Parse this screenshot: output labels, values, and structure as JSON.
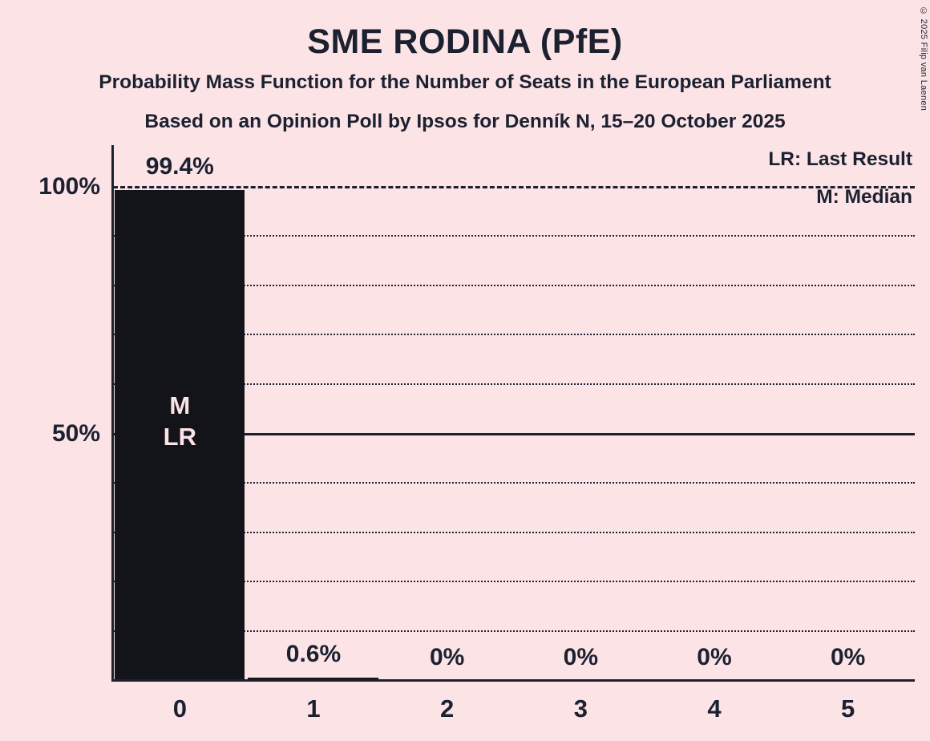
{
  "page": {
    "background_color": "#fce3e6",
    "text_color": "#1b2130"
  },
  "header": {
    "title": "SME RODINA (PfE)",
    "subtitle1": "Probability Mass Function for the Number of Seats in the European Parliament",
    "subtitle2": "Based on an Opinion Poll by Ipsos for Denník N, 15–20 October 2025"
  },
  "legend": {
    "lr": "LR: Last Result",
    "m": "M: Median"
  },
  "copyright": "© 2025 Filip van Laenen",
  "chart_data": {
    "type": "bar",
    "title": "SME RODINA (PfE)",
    "categories": [
      "0",
      "1",
      "2",
      "3",
      "4",
      "5"
    ],
    "values": [
      99.4,
      0.6,
      0,
      0,
      0,
      0
    ],
    "value_labels": [
      "99.4%",
      "0.6%",
      "0%",
      "0%",
      "0%",
      "0%"
    ],
    "bar_annotations": [
      {
        "index": 0,
        "lines": [
          "M",
          "LR"
        ]
      }
    ],
    "ylim": [
      0,
      100
    ],
    "yticks": [
      {
        "pct": 100,
        "label": "100%"
      },
      {
        "pct": 50,
        "label": "50%"
      }
    ],
    "gridlines": [
      {
        "pct": 100,
        "style": "dashed"
      },
      {
        "pct": 90,
        "style": "dotted"
      },
      {
        "pct": 80,
        "style": "dotted"
      },
      {
        "pct": 70,
        "style": "dotted"
      },
      {
        "pct": 60,
        "style": "dotted"
      },
      {
        "pct": 50,
        "style": "solid"
      },
      {
        "pct": 40,
        "style": "dotted"
      },
      {
        "pct": 30,
        "style": "dotted"
      },
      {
        "pct": 20,
        "style": "dotted"
      },
      {
        "pct": 10,
        "style": "dotted"
      }
    ],
    "bar_color": "#12141a",
    "annotation_color": "#fce3e6",
    "legend_entries": [
      "LR: Last Result",
      "M: Median"
    ],
    "legend_position": "top-right",
    "grid": "horizontal-only"
  }
}
